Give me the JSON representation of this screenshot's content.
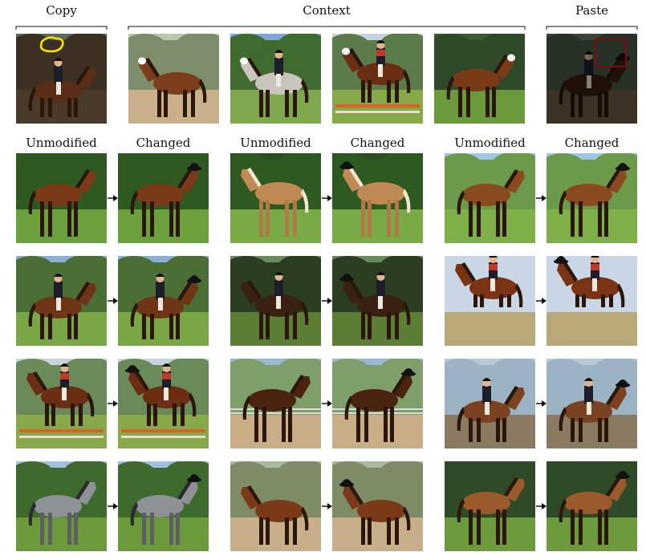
{
  "headers": {
    "copy": "Copy",
    "context": "Context",
    "paste": "Paste"
  },
  "columns": {
    "c1": "Unmodified",
    "c2": "Changed",
    "c3": "Unmodified",
    "c4": "Changed",
    "c5": "Unmodified",
    "c6": "Changed"
  },
  "colors": {
    "copy_mask": "#ffe600",
    "paste_box": "#e0161e",
    "context_dot": "#ffffff",
    "arrow": "#111111"
  },
  "icons": {
    "arrow": "right-arrow-icon"
  }
}
